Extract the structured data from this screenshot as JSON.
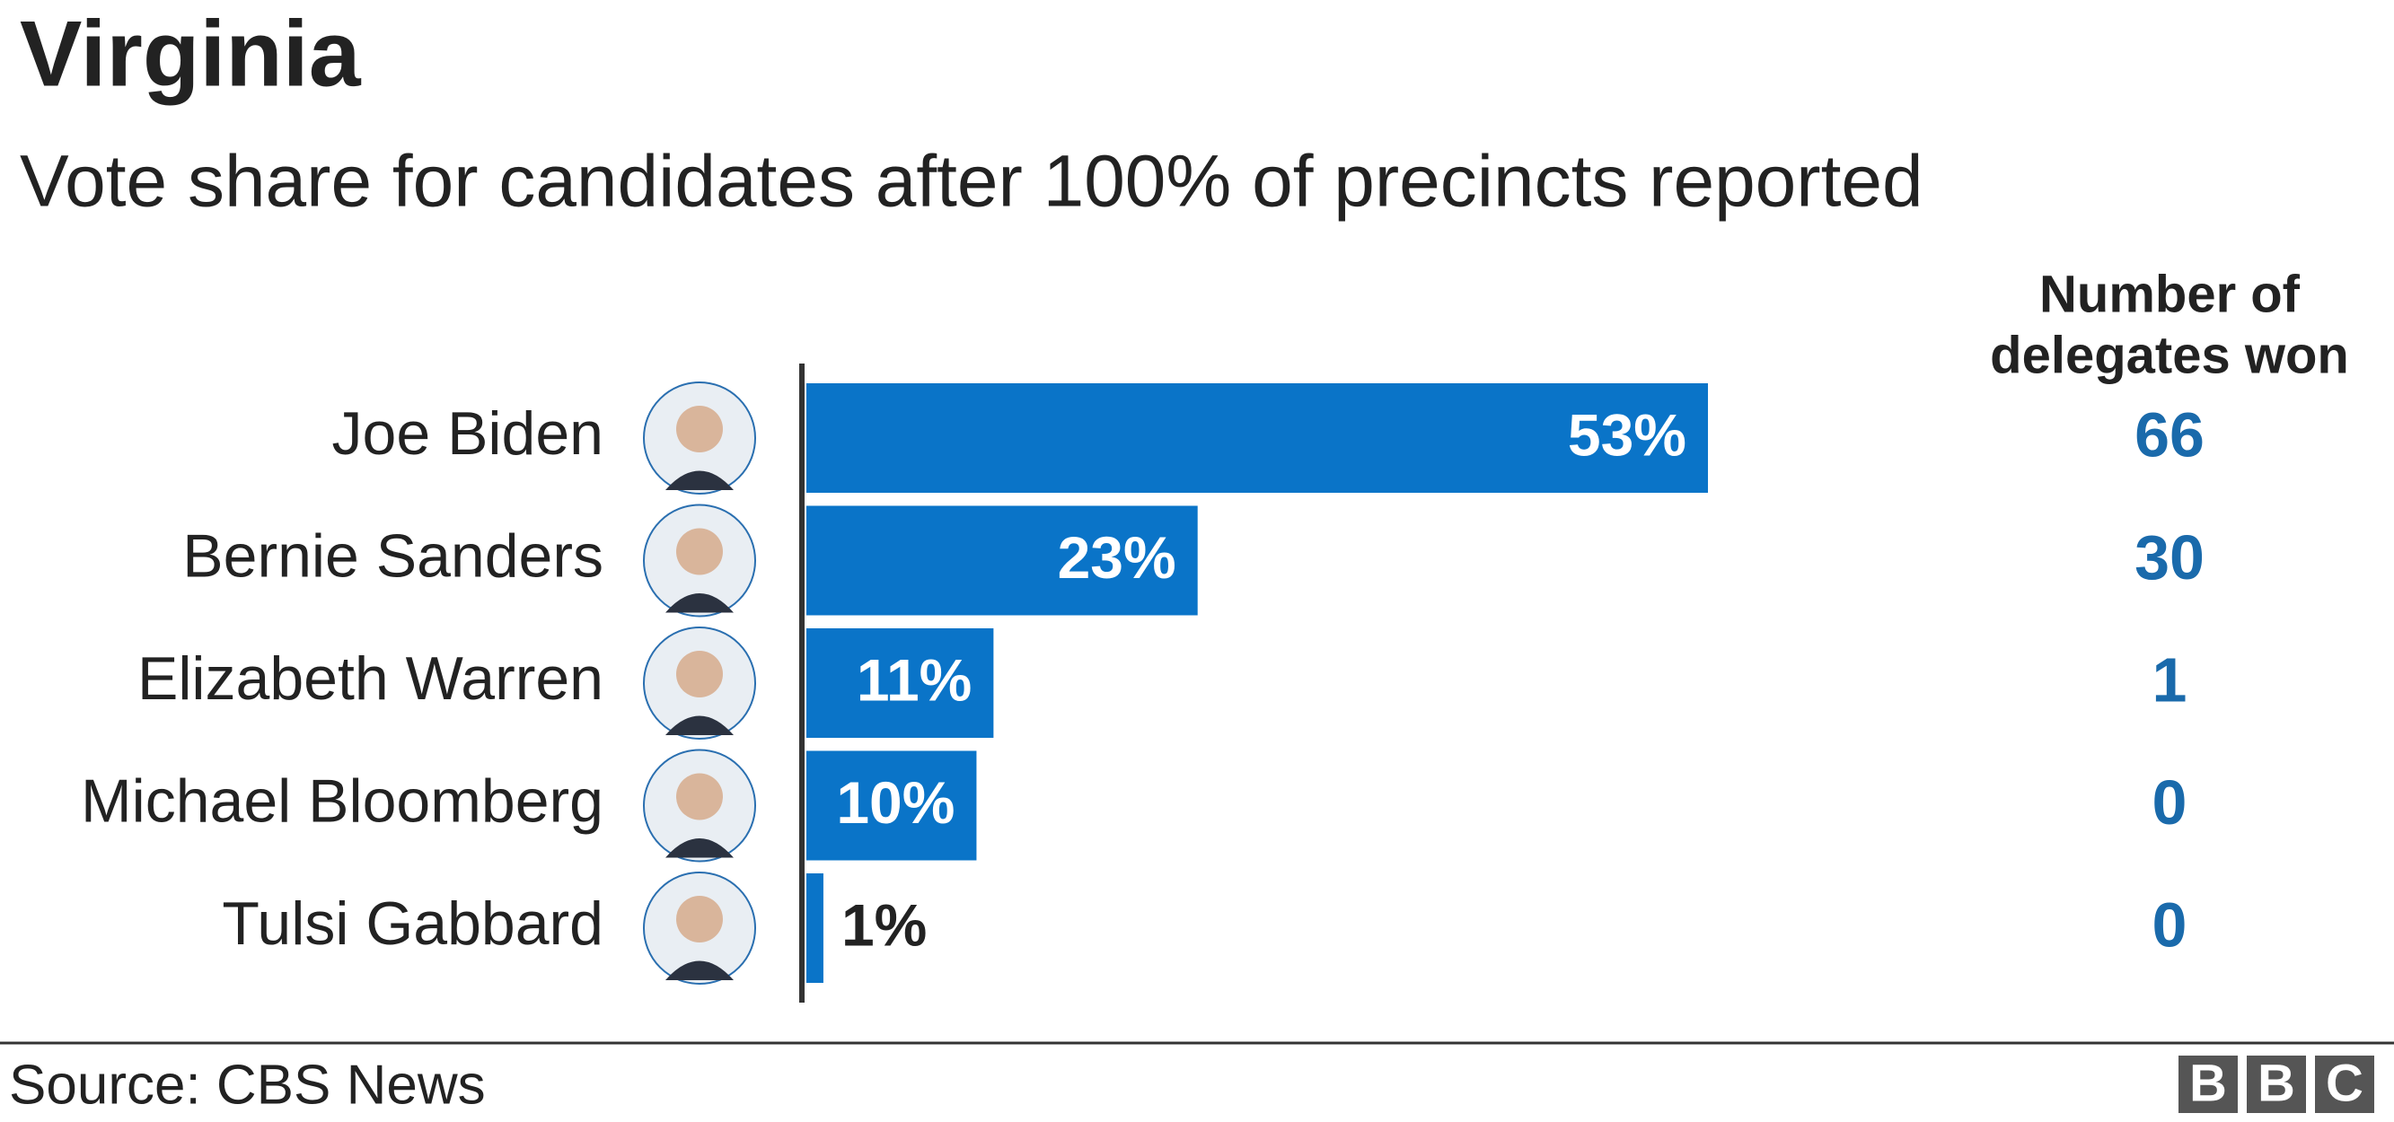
{
  "chart_data": {
    "type": "bar",
    "orientation": "horizontal",
    "title": "Virginia",
    "subtitle": "Vote share for candidates after 100% of precincts reported",
    "categories": [
      "Joe Biden",
      "Bernie Sanders",
      "Elizabeth Warren",
      "Michael Bloomberg",
      "Tulsi Gabbard"
    ],
    "values": [
      53,
      23,
      11,
      10,
      1
    ],
    "value_labels": [
      "53%",
      "23%",
      "11%",
      "10%",
      "1%"
    ],
    "color": "#0a74c8",
    "delegates_header": [
      "Number of",
      "delegates won"
    ],
    "delegates": [
      66,
      30,
      1,
      0,
      0
    ],
    "delegates_color": "#1a6aab",
    "source": "Source: CBS News",
    "logo": [
      "B",
      "B",
      "C"
    ]
  }
}
